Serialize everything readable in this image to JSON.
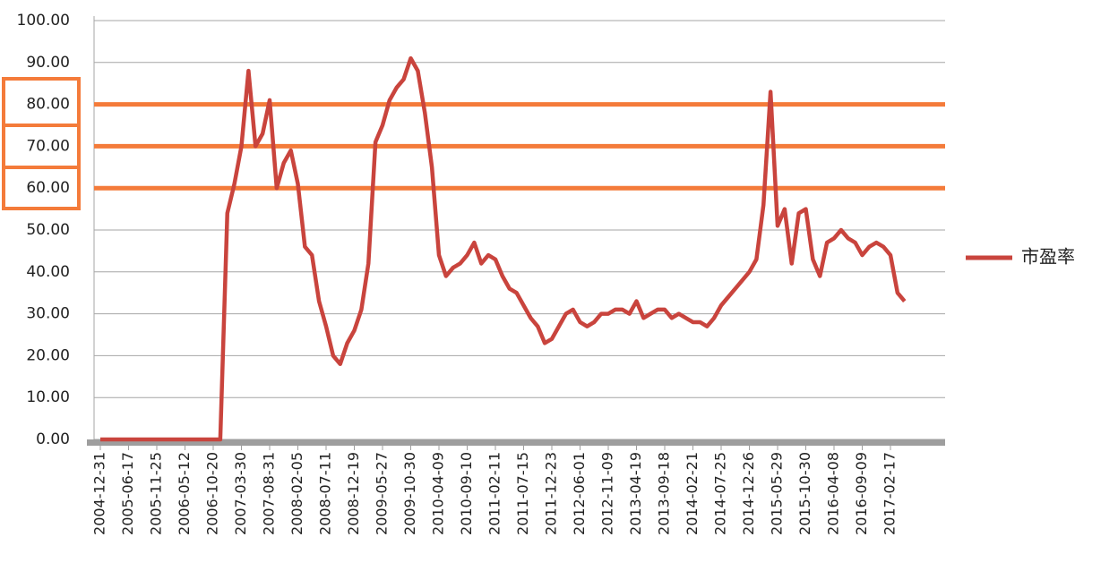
{
  "chart_data": {
    "type": "line",
    "x": [
      "2004-12-31",
      null,
      null,
      null,
      "2005-06-17",
      null,
      null,
      null,
      "2005-11-25",
      null,
      null,
      null,
      "2006-05-12",
      null,
      null,
      null,
      "2006-10-20",
      null,
      null,
      null,
      "2007-03-30",
      null,
      null,
      null,
      "2007-08-31",
      null,
      null,
      null,
      "2008-02-05",
      null,
      null,
      null,
      "2008-07-11",
      null,
      null,
      null,
      "2008-12-19",
      null,
      null,
      null,
      "2009-05-27",
      null,
      null,
      null,
      "2009-10-30",
      null,
      null,
      null,
      "2010-04-09",
      null,
      null,
      null,
      "2010-09-10",
      null,
      null,
      null,
      "2011-02-11",
      null,
      null,
      null,
      "2011-07-15",
      null,
      null,
      null,
      "2011-12-23",
      null,
      null,
      null,
      "2012-06-01",
      null,
      null,
      null,
      "2012-11-09",
      null,
      null,
      null,
      "2013-04-19",
      null,
      null,
      null,
      "2013-09-18",
      null,
      null,
      null,
      "2014-02-21",
      null,
      null,
      null,
      "2014-07-25",
      null,
      null,
      null,
      "2014-12-26",
      null,
      null,
      null,
      "2015-05-29",
      null,
      null,
      null,
      "2015-10-30",
      null,
      null,
      null,
      "2016-04-08",
      null,
      null,
      null,
      "2016-09-09",
      null,
      null,
      null,
      "2017-02-17",
      null,
      null
    ],
    "series": [
      {
        "name": "市盈率",
        "color": "#c9443d",
        "values": [
          0,
          0,
          0,
          0,
          0,
          0,
          0,
          0,
          0,
          0,
          0,
          0,
          0,
          0,
          0,
          0,
          0,
          0,
          54,
          61,
          70,
          88,
          70,
          73,
          81,
          60,
          66,
          69,
          61,
          46,
          44,
          33,
          27,
          20,
          18,
          23,
          26,
          31,
          42,
          71,
          75,
          81,
          84,
          86,
          91,
          88,
          78,
          65,
          44,
          39,
          41,
          42,
          44,
          47,
          42,
          44,
          43,
          39,
          36,
          35,
          32,
          29,
          27,
          23,
          24,
          27,
          30,
          31,
          28,
          27,
          28,
          30,
          30,
          31,
          31,
          30,
          33,
          29,
          30,
          31,
          31,
          29,
          30,
          29,
          28,
          28,
          27,
          29,
          32,
          34,
          36,
          38,
          40,
          43,
          56,
          83,
          51,
          55,
          42,
          54,
          55,
          43,
          39,
          47,
          48,
          50,
          48,
          47,
          44,
          46,
          47,
          46,
          44,
          35,
          33
        ]
      }
    ],
    "reference_lines": {
      "values": [
        80,
        70,
        60
      ],
      "color": "#f47b3a"
    },
    "ylim": [
      0,
      100
    ],
    "yticks": [
      {
        "value": 0,
        "label": "0.00"
      },
      {
        "value": 10,
        "label": "10.00"
      },
      {
        "value": 20,
        "label": "20.00"
      },
      {
        "value": 30,
        "label": "30.00"
      },
      {
        "value": 40,
        "label": "40.00"
      },
      {
        "value": 50,
        "label": "50.00"
      },
      {
        "value": 60,
        "label": "60.00"
      },
      {
        "value": 70,
        "label": "70.00"
      },
      {
        "value": 80,
        "label": "80.00"
      },
      {
        "value": 90,
        "label": "90.00"
      },
      {
        "value": 100,
        "label": "100.00"
      }
    ],
    "grid": true,
    "legend": "right"
  }
}
